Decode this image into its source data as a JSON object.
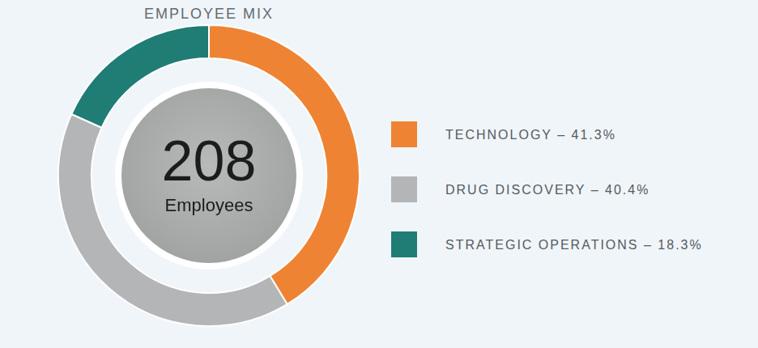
{
  "chart_data": {
    "type": "doughnut",
    "title": "EMPLOYEE MIX",
    "categories": [
      "TECHNOLOGY – 41.3%",
      "DRUG DISCOVERY – 40.4%",
      "STRATEGIC OPERATIONS – 18.3%"
    ],
    "values": [
      41.3,
      40.4,
      18.3
    ],
    "colors": [
      "#ee8433",
      "#b3b5b6",
      "#1f7d75"
    ],
    "center_value": 208,
    "center_label": "Employees",
    "legend": "right"
  }
}
